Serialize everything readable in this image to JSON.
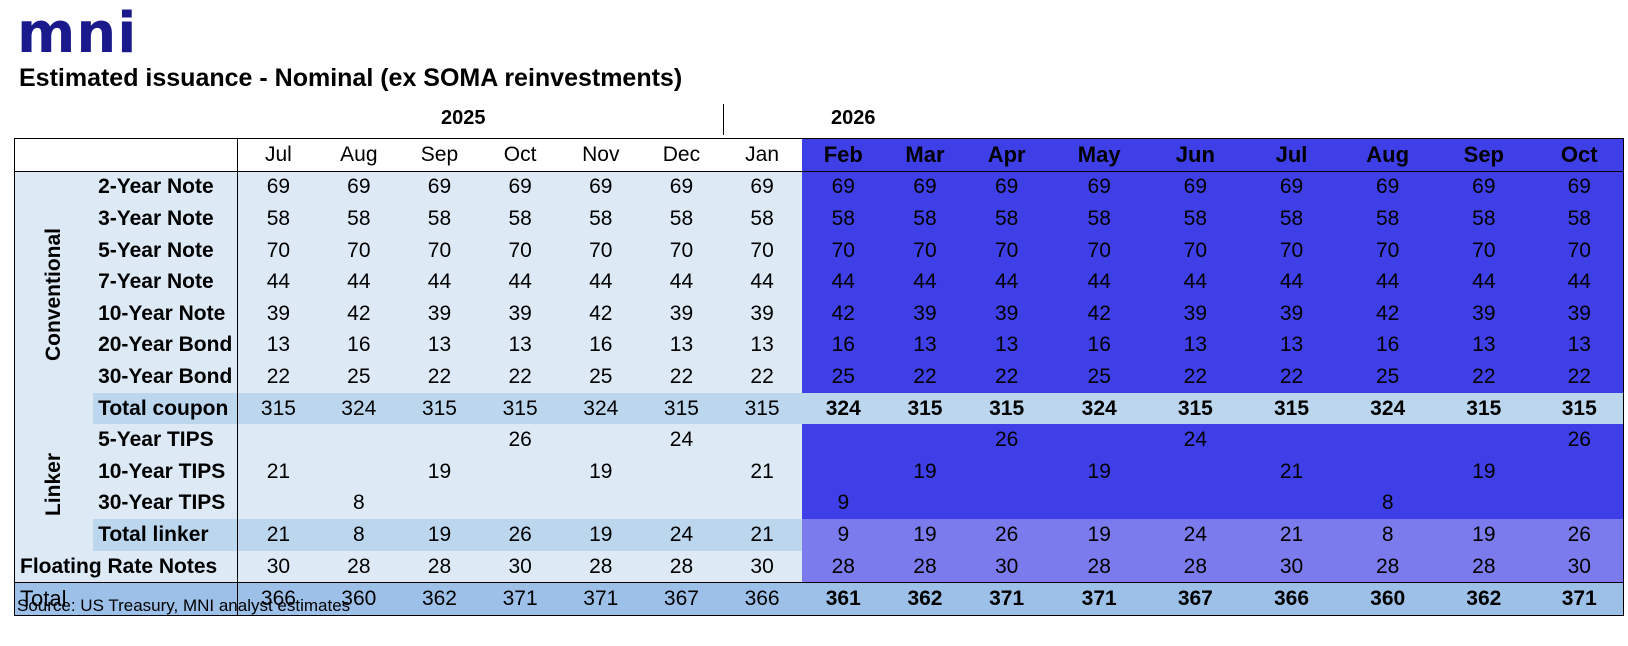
{
  "logo": "mni",
  "title": "Estimated issuance - Nominal (ex SOMA reinvestments)",
  "years": [
    "2025",
    "2026"
  ],
  "months": [
    "Jul",
    "Aug",
    "Sep",
    "Oct",
    "Nov",
    "Dec",
    "Jan",
    "Feb",
    "Mar",
    "Apr",
    "May",
    "Jun",
    "Jul",
    "Aug",
    "Sep",
    "Oct"
  ],
  "groups": {
    "conventional": "Conventional",
    "linker": "Linker"
  },
  "rows": [
    {
      "label": "2-Year Note",
      "values": [
        "69",
        "69",
        "69",
        "69",
        "69",
        "69",
        "69",
        "69",
        "69",
        "69",
        "69",
        "69",
        "69",
        "69",
        "69",
        "69"
      ]
    },
    {
      "label": "3-Year Note",
      "values": [
        "58",
        "58",
        "58",
        "58",
        "58",
        "58",
        "58",
        "58",
        "58",
        "58",
        "58",
        "58",
        "58",
        "58",
        "58",
        "58"
      ]
    },
    {
      "label": "5-Year Note",
      "values": [
        "70",
        "70",
        "70",
        "70",
        "70",
        "70",
        "70",
        "70",
        "70",
        "70",
        "70",
        "70",
        "70",
        "70",
        "70",
        "70"
      ]
    },
    {
      "label": "7-Year Note",
      "values": [
        "44",
        "44",
        "44",
        "44",
        "44",
        "44",
        "44",
        "44",
        "44",
        "44",
        "44",
        "44",
        "44",
        "44",
        "44",
        "44"
      ]
    },
    {
      "label": "10-Year Note",
      "values": [
        "39",
        "42",
        "39",
        "39",
        "42",
        "39",
        "39",
        "42",
        "39",
        "39",
        "42",
        "39",
        "39",
        "42",
        "39",
        "39"
      ]
    },
    {
      "label": "20-Year Bond",
      "values": [
        "13",
        "16",
        "13",
        "13",
        "16",
        "13",
        "13",
        "16",
        "13",
        "13",
        "16",
        "13",
        "13",
        "16",
        "13",
        "13"
      ]
    },
    {
      "label": "30-Year Bond",
      "values": [
        "22",
        "25",
        "22",
        "22",
        "25",
        "22",
        "22",
        "25",
        "22",
        "22",
        "25",
        "22",
        "22",
        "25",
        "22",
        "22"
      ]
    },
    {
      "label": "Total coupon",
      "values": [
        "315",
        "324",
        "315",
        "315",
        "324",
        "315",
        "315",
        "324",
        "315",
        "315",
        "324",
        "315",
        "315",
        "324",
        "315",
        "315"
      ]
    },
    {
      "label": "5-Year TIPS",
      "values": [
        "",
        "",
        "",
        "26",
        "",
        "24",
        "",
        "",
        "",
        "26",
        "",
        "24",
        "",
        "",
        "",
        "26"
      ]
    },
    {
      "label": "10-Year TIPS",
      "values": [
        "21",
        "",
        "19",
        "",
        "19",
        "",
        "21",
        "",
        "19",
        "",
        "19",
        "",
        "21",
        "",
        "19",
        ""
      ]
    },
    {
      "label": "30-Year TIPS",
      "values": [
        "",
        "8",
        "",
        "",
        "",
        "",
        "",
        "9",
        "",
        "",
        "",
        "",
        "",
        "8",
        "",
        ""
      ]
    },
    {
      "label": "Total linker",
      "values": [
        "21",
        "8",
        "19",
        "26",
        "19",
        "24",
        "21",
        "9",
        "19",
        "26",
        "19",
        "24",
        "21",
        "8",
        "19",
        "26"
      ]
    },
    {
      "label": "Floating Rate Notes",
      "values": [
        "30",
        "28",
        "28",
        "30",
        "28",
        "28",
        "30",
        "28",
        "28",
        "30",
        "28",
        "28",
        "30",
        "28",
        "28",
        "30"
      ]
    },
    {
      "label": "Total",
      "values": [
        "366",
        "360",
        "362",
        "371",
        "371",
        "367",
        "366",
        "361",
        "362",
        "371",
        "371",
        "367",
        "366",
        "360",
        "362",
        "371"
      ]
    }
  ],
  "source": "Source: US Treasury, MNI analyst estimates",
  "colors": {
    "forecast": "#3f3fe8",
    "forecast_linker_total": "#7b7bee",
    "light": "#dde9f5",
    "totals": "#bcd6ee",
    "grand_total": "#9dc0e8",
    "logo": "#1a1a8c"
  }
}
